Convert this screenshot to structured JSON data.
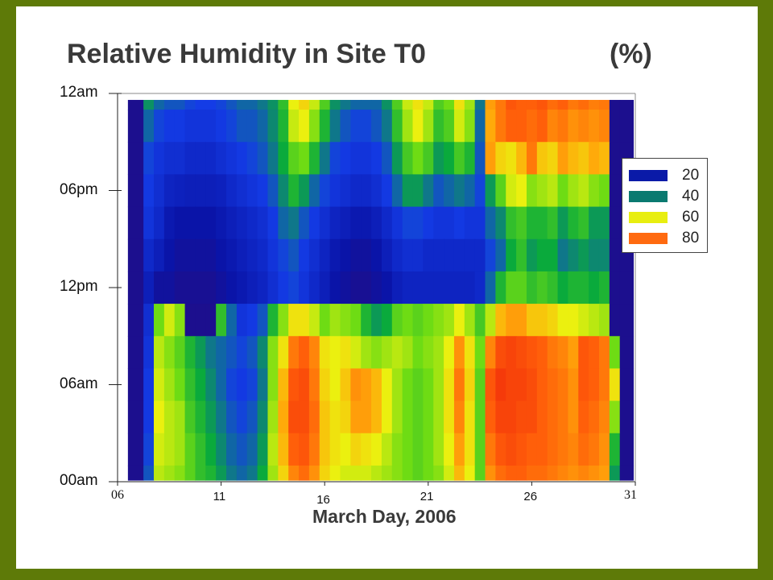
{
  "chart_data": {
    "type": "heatmap",
    "title": "Relative Humidity in Site T0",
    "unit": "(%)",
    "xlabel": "March Day, 2006",
    "ylabel": "",
    "x_ticks": [
      {
        "value": 6,
        "label": "06",
        "style": "serif"
      },
      {
        "value": 11,
        "label": "11",
        "style": "sans"
      },
      {
        "value": 16,
        "label": "16",
        "style": "sans"
      },
      {
        "value": 21,
        "label": "21",
        "style": "sans"
      },
      {
        "value": 26,
        "label": "26",
        "style": "sans"
      },
      {
        "value": 31,
        "label": "31",
        "style": "serif"
      }
    ],
    "y_ticks": [
      {
        "value": 0,
        "label": "00am"
      },
      {
        "value": 6,
        "label": "06am"
      },
      {
        "value": 12,
        "label": "12pm"
      },
      {
        "value": 18,
        "label": "06pm"
      },
      {
        "value": 24,
        "label": "12am"
      }
    ],
    "xlim": [
      6,
      31
    ],
    "ylim": [
      0,
      24
    ],
    "legend": {
      "position": "right",
      "entries": [
        {
          "label": "20",
          "color": "#0a1aa8"
        },
        {
          "label": "40",
          "color": "#0a7a70"
        },
        {
          "label": "60",
          "color": "#e8ee10"
        },
        {
          "label": "80",
          "color": "#ff6a10"
        }
      ]
    },
    "x": [
      7,
      7.5,
      8,
      8.5,
      9,
      9.5,
      10,
      10.5,
      11,
      11.5,
      12,
      12.5,
      13,
      13.5,
      14,
      14.5,
      15,
      15.5,
      16,
      16.5,
      17,
      17.5,
      18,
      18.5,
      19,
      19.5,
      20,
      20.5,
      21,
      21.5,
      22,
      22.5,
      23,
      23.5,
      24,
      24.5,
      25,
      25.5,
      26,
      26.5,
      27,
      27.5,
      28,
      28.5,
      29,
      29.5,
      30,
      30.5
    ],
    "y": [
      24,
      22,
      20,
      18,
      16,
      14,
      12,
      10,
      8,
      6,
      4,
      2,
      0
    ],
    "z": [
      [
        5,
        35,
        30,
        28,
        28,
        26,
        25,
        25,
        26,
        28,
        30,
        30,
        32,
        35,
        42,
        58,
        62,
        55,
        45,
        35,
        32,
        30,
        30,
        30,
        35,
        45,
        55,
        60,
        55,
        45,
        48,
        60,
        52,
        32,
        70,
        76,
        82,
        80,
        80,
        82,
        78,
        80,
        76,
        78,
        75,
        76,
        5,
        5
      ],
      [
        5,
        30,
        26,
        24,
        24,
        22,
        22,
        22,
        24,
        26,
        28,
        28,
        30,
        34,
        40,
        55,
        58,
        50,
        40,
        32,
        28,
        26,
        26,
        28,
        32,
        42,
        52,
        58,
        52,
        42,
        45,
        56,
        50,
        30,
        68,
        76,
        80,
        80,
        78,
        80,
        74,
        76,
        72,
        74,
        72,
        74,
        5,
        5
      ],
      [
        5,
        26,
        22,
        20,
        20,
        18,
        18,
        18,
        20,
        22,
        24,
        26,
        28,
        32,
        38,
        46,
        48,
        40,
        32,
        26,
        24,
        22,
        22,
        24,
        28,
        36,
        44,
        48,
        44,
        36,
        38,
        44,
        40,
        28,
        70,
        62,
        60,
        66,
        76,
        64,
        62,
        70,
        66,
        64,
        68,
        66,
        5,
        5
      ],
      [
        5,
        24,
        20,
        16,
        15,
        14,
        14,
        14,
        15,
        18,
        20,
        22,
        24,
        28,
        34,
        40,
        36,
        30,
        26,
        22,
        20,
        18,
        18,
        20,
        24,
        30,
        36,
        36,
        32,
        28,
        30,
        32,
        30,
        26,
        36,
        46,
        56,
        58,
        50,
        52,
        54,
        48,
        52,
        54,
        50,
        48,
        5,
        5
      ],
      [
        5,
        22,
        18,
        12,
        10,
        10,
        10,
        10,
        12,
        14,
        16,
        18,
        20,
        24,
        30,
        32,
        28,
        24,
        20,
        16,
        14,
        12,
        12,
        14,
        18,
        22,
        26,
        26,
        24,
        22,
        22,
        24,
        22,
        22,
        30,
        34,
        42,
        44,
        40,
        40,
        42,
        36,
        40,
        42,
        36,
        36,
        5,
        5
      ],
      [
        5,
        18,
        14,
        10,
        8,
        8,
        8,
        8,
        10,
        12,
        14,
        16,
        18,
        22,
        26,
        28,
        24,
        20,
        16,
        12,
        10,
        8,
        8,
        10,
        14,
        18,
        20,
        20,
        18,
        18,
        18,
        18,
        18,
        18,
        26,
        30,
        38,
        42,
        36,
        38,
        38,
        32,
        34,
        36,
        34,
        34,
        5,
        5
      ],
      [
        5,
        14,
        8,
        8,
        6,
        6,
        6,
        6,
        8,
        10,
        12,
        14,
        16,
        20,
        24,
        26,
        22,
        18,
        14,
        10,
        8,
        6,
        6,
        8,
        10,
        14,
        16,
        16,
        16,
        16,
        16,
        16,
        16,
        18,
        30,
        40,
        46,
        46,
        42,
        44,
        42,
        38,
        40,
        40,
        38,
        40,
        5,
        5
      ],
      [
        5,
        20,
        48,
        56,
        50,
        5,
        5,
        5,
        42,
        30,
        22,
        24,
        28,
        40,
        50,
        60,
        60,
        55,
        48,
        52,
        50,
        48,
        40,
        36,
        38,
        46,
        48,
        46,
        48,
        50,
        52,
        58,
        52,
        44,
        54,
        66,
        70,
        70,
        64,
        64,
        62,
        58,
        58,
        56,
        54,
        52,
        5,
        5
      ],
      [
        5,
        22,
        54,
        50,
        46,
        40,
        36,
        32,
        30,
        28,
        26,
        28,
        34,
        50,
        60,
        76,
        80,
        74,
        60,
        58,
        60,
        56,
        52,
        50,
        52,
        54,
        52,
        48,
        50,
        52,
        58,
        72,
        60,
        48,
        74,
        84,
        86,
        84,
        82,
        80,
        76,
        74,
        70,
        82,
        80,
        76,
        48,
        5
      ],
      [
        5,
        24,
        56,
        52,
        48,
        42,
        38,
        34,
        30,
        26,
        24,
        26,
        32,
        50,
        66,
        82,
        84,
        76,
        62,
        58,
        64,
        72,
        70,
        66,
        58,
        52,
        48,
        46,
        48,
        52,
        60,
        76,
        62,
        46,
        82,
        88,
        86,
        86,
        84,
        80,
        78,
        76,
        72,
        82,
        80,
        76,
        60,
        5
      ],
      [
        5,
        24,
        58,
        54,
        52,
        44,
        40,
        36,
        32,
        28,
        26,
        28,
        34,
        52,
        68,
        84,
        84,
        78,
        64,
        60,
        62,
        70,
        70,
        66,
        58,
        52,
        48,
        46,
        48,
        52,
        60,
        74,
        60,
        46,
        80,
        86,
        86,
        84,
        84,
        80,
        78,
        76,
        72,
        80,
        78,
        74,
        50,
        5
      ],
      [
        5,
        26,
        56,
        54,
        52,
        46,
        42,
        38,
        34,
        30,
        28,
        30,
        36,
        54,
        66,
        80,
        82,
        76,
        64,
        60,
        58,
        62,
        60,
        58,
        54,
        50,
        48,
        46,
        48,
        52,
        58,
        70,
        60,
        46,
        76,
        82,
        84,
        82,
        80,
        80,
        78,
        76,
        74,
        78,
        76,
        72,
        40,
        5
      ],
      [
        5,
        28,
        54,
        52,
        50,
        46,
        42,
        40,
        36,
        32,
        30,
        32,
        38,
        52,
        62,
        74,
        78,
        72,
        62,
        58,
        56,
        56,
        56,
        54,
        52,
        50,
        48,
        46,
        48,
        50,
        56,
        66,
        58,
        46,
        72,
        78,
        80,
        80,
        78,
        78,
        76,
        74,
        72,
        74,
        72,
        70,
        36,
        5
      ]
    ]
  }
}
